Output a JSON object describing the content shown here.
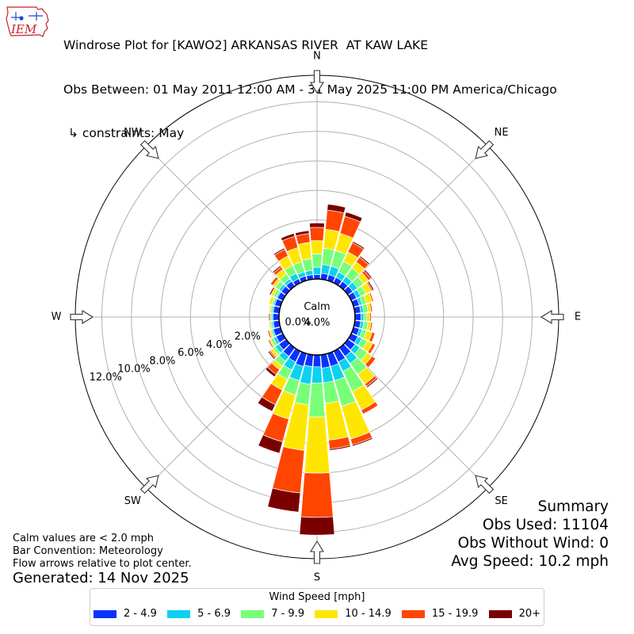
{
  "header": {
    "title_line1": "Windrose Plot for [KAWO2] ARKANSAS RIVER  AT KAW LAKE",
    "title_line2": "Obs Between: 01 May 2011 12:00 AM - 31 May 2025 11:00 PM America/Chicago",
    "title_line3": "↳ constraints: May",
    "logo_text": "IEM"
  },
  "summary": {
    "heading": "Summary",
    "obs_used": "Obs Used: 11104",
    "obs_without_wind": "Obs Without Wind: 0",
    "avg_speed": "Avg Speed: 10.2 mph"
  },
  "notes": {
    "calm_note": "Calm values are < 2.0 mph",
    "bar_convention": "Bar Convention: Meteorology",
    "flow_arrows": "Flow arrows relative to plot center.",
    "generated": "Generated: 14 Nov 2025"
  },
  "legend": {
    "title": "Wind Speed [mph]",
    "items": [
      {
        "label": "2 - 4.9",
        "color": "#0a32ff"
      },
      {
        "label": "5 - 6.9",
        "color": "#0ad2f0"
      },
      {
        "label": "7 - 9.9",
        "color": "#78ff78"
      },
      {
        "label": "10 - 14.9",
        "color": "#ffe600"
      },
      {
        "label": "15 - 19.9",
        "color": "#ff4500"
      },
      {
        "label": "20+",
        "color": "#7a0000"
      }
    ]
  },
  "chart_data": {
    "type": "windrose",
    "calm_label": "Calm",
    "calm_value_label": "4.0%",
    "calm_percent": 4.0,
    "radial_unit": "%",
    "radial_tick_labels": [
      "0.0%",
      "2.0%",
      "4.0%",
      "6.0%",
      "8.0%",
      "10.0%",
      "12.0%"
    ],
    "radial_ticks": [
      0,
      2,
      4,
      6,
      8,
      10,
      12
    ],
    "rmax": 13.8,
    "compass_labels": [
      {
        "label": "N",
        "deg": 0
      },
      {
        "label": "NE",
        "deg": 45
      },
      {
        "label": "E",
        "deg": 90
      },
      {
        "label": "SE",
        "deg": 135
      },
      {
        "label": "S",
        "deg": 180
      },
      {
        "label": "SW",
        "deg": 225
      },
      {
        "label": "W",
        "deg": 270
      },
      {
        "label": "NW",
        "deg": 315
      }
    ],
    "speed_bins": [
      "2 - 4.9",
      "5 - 6.9",
      "7 - 9.9",
      "10 - 14.9",
      "15 - 19.9",
      "20+"
    ],
    "directions_deg": [
      0,
      10,
      20,
      30,
      40,
      50,
      60,
      70,
      80,
      90,
      100,
      110,
      120,
      130,
      140,
      150,
      160,
      170,
      180,
      190,
      200,
      210,
      220,
      230,
      240,
      250,
      260,
      270,
      280,
      290,
      300,
      310,
      320,
      330,
      340,
      350
    ],
    "cumulative_percent": [
      [
        0.3,
        0.8,
        1.7,
        2.6,
        3.5,
        3.8
      ],
      [
        0.4,
        1.0,
        2.1,
        3.4,
        4.7,
        5.1
      ],
      [
        0.4,
        1.0,
        2.1,
        3.3,
        4.5,
        4.8
      ],
      [
        0.4,
        0.8,
        1.6,
        2.3,
        3.0,
        3.1
      ],
      [
        0.4,
        0.8,
        1.5,
        2.0,
        2.4,
        2.5
      ],
      [
        0.4,
        0.8,
        1.3,
        1.7,
        1.9,
        2.0
      ],
      [
        0.4,
        0.7,
        1.1,
        1.5,
        1.6,
        1.7
      ],
      [
        0.4,
        0.6,
        0.9,
        1.3,
        1.4,
        1.4
      ],
      [
        0.4,
        0.6,
        0.9,
        1.1,
        1.2,
        1.2
      ],
      [
        0.4,
        0.6,
        0.8,
        1.0,
        1.1,
        1.1
      ],
      [
        0.4,
        0.6,
        0.9,
        1.1,
        1.2,
        1.2
      ],
      [
        0.4,
        0.6,
        0.9,
        1.3,
        1.5,
        1.5
      ],
      [
        0.5,
        0.8,
        1.2,
        1.6,
        1.8,
        1.8
      ],
      [
        0.6,
        1.0,
        1.6,
        2.0,
        2.3,
        2.3
      ],
      [
        0.7,
        1.3,
        2.2,
        3.0,
        3.2,
        3.3
      ],
      [
        0.8,
        1.5,
        3.0,
        4.4,
        4.7,
        4.7
      ],
      [
        0.9,
        1.9,
        3.7,
        6.0,
        6.4,
        6.5
      ],
      [
        0.9,
        1.9,
        3.3,
        5.8,
        6.4,
        6.5
      ],
      [
        0.8,
        1.9,
        4.2,
        8.0,
        11.0,
        12.2
      ],
      [
        0.8,
        2.0,
        3.4,
        6.5,
        9.4,
        10.7
      ],
      [
        0.9,
        1.9,
        2.9,
        4.6,
        6.2,
        7.0
      ],
      [
        0.8,
        1.4,
        2.1,
        2.9,
        4.0,
        4.5
      ],
      [
        0.7,
        1.1,
        1.5,
        1.8,
        2.2,
        2.4
      ],
      [
        0.6,
        0.9,
        1.1,
        1.3,
        1.4,
        1.5
      ],
      [
        0.5,
        0.7,
        0.9,
        1.0,
        1.1,
        1.1
      ],
      [
        0.5,
        0.6,
        0.7,
        0.8,
        0.9,
        0.9
      ],
      [
        0.4,
        0.5,
        0.6,
        0.7,
        0.7,
        0.7
      ],
      [
        0.4,
        0.5,
        0.6,
        0.6,
        0.7,
        0.7
      ],
      [
        0.4,
        0.5,
        0.6,
        0.7,
        0.7,
        0.7
      ],
      [
        0.4,
        0.5,
        0.6,
        0.8,
        0.8,
        0.8
      ],
      [
        0.4,
        0.5,
        0.7,
        0.9,
        0.9,
        1.0
      ],
      [
        0.4,
        0.6,
        0.9,
        1.1,
        1.3,
        1.3
      ],
      [
        0.4,
        0.6,
        1.0,
        1.4,
        1.6,
        1.7
      ],
      [
        0.3,
        0.7,
        1.3,
        2.0,
        2.5,
        2.6
      ],
      [
        0.3,
        0.6,
        1.3,
        2.3,
        3.1,
        3.3
      ],
      [
        0.3,
        0.6,
        1.4,
        2.5,
        3.1,
        3.3
      ]
    ]
  }
}
